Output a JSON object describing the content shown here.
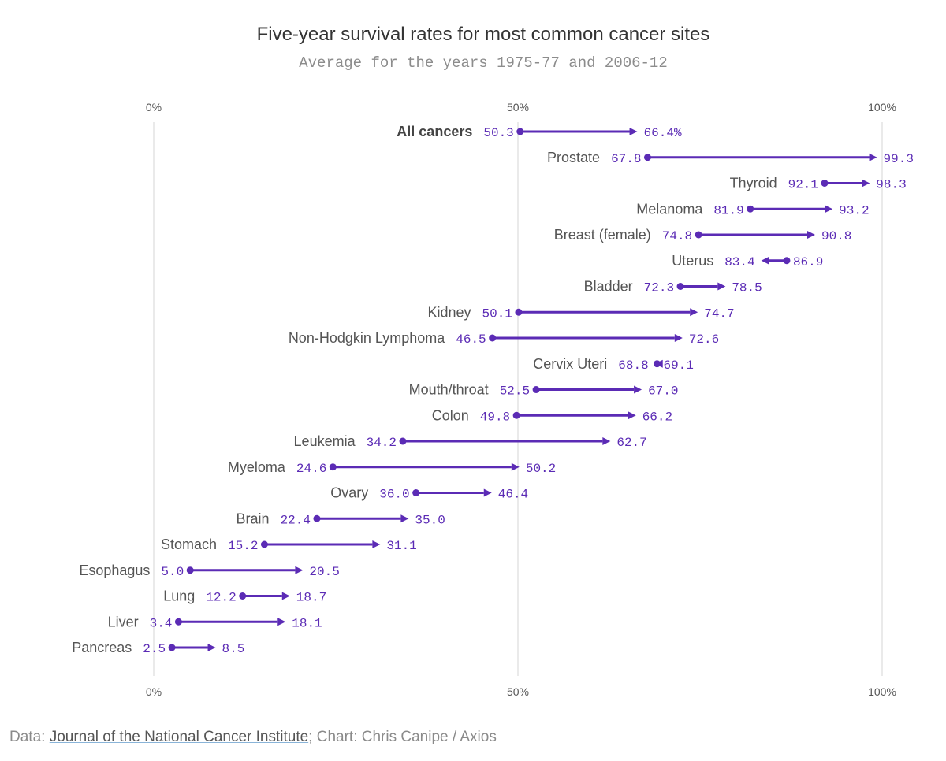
{
  "chart_data": {
    "type": "dumbbell-arrow",
    "title": "Five-year survival rates for most common cancer sites",
    "subtitle": "Average for the years 1975-77 and 2006-12",
    "xlim": [
      0,
      100
    ],
    "ticks": [
      {
        "value": 0,
        "label": "0%"
      },
      {
        "value": 50,
        "label": "50%"
      },
      {
        "value": 100,
        "label": "100%"
      }
    ],
    "color": "#5b2bb5",
    "gridline_color": "#d4d4d4",
    "series_names": [
      "1975-77",
      "2006-12"
    ],
    "rows": [
      {
        "category": "All cancers",
        "start": 50.3,
        "end": 66.4,
        "start_label": "50.3",
        "end_label": "66.4%",
        "bold": true
      },
      {
        "category": "Prostate",
        "start": 67.8,
        "end": 99.3,
        "start_label": "67.8",
        "end_label": "99.3"
      },
      {
        "category": "Thyroid",
        "start": 92.1,
        "end": 98.3,
        "start_label": "92.1",
        "end_label": "98.3"
      },
      {
        "category": "Melanoma",
        "start": 81.9,
        "end": 93.2,
        "start_label": "81.9",
        "end_label": "93.2"
      },
      {
        "category": "Breast (female)",
        "start": 74.8,
        "end": 90.8,
        "start_label": "74.8",
        "end_label": "90.8"
      },
      {
        "category": "Uterus",
        "start": 86.9,
        "end": 83.4,
        "start_label": "86.9",
        "end_label": "83.4"
      },
      {
        "category": "Bladder",
        "start": 72.3,
        "end": 78.5,
        "start_label": "72.3",
        "end_label": "78.5"
      },
      {
        "category": "Kidney",
        "start": 50.1,
        "end": 74.7,
        "start_label": "50.1",
        "end_label": "74.7"
      },
      {
        "category": "Non-Hodgkin Lymphoma",
        "start": 46.5,
        "end": 72.6,
        "start_label": "46.5",
        "end_label": "72.6"
      },
      {
        "category": "Cervix Uteri",
        "start": 69.1,
        "end": 68.8,
        "start_label": "69.1",
        "end_label": "68.8"
      },
      {
        "category": "Mouth/throat",
        "start": 52.5,
        "end": 67.0,
        "start_label": "52.5",
        "end_label": "67.0"
      },
      {
        "category": "Colon",
        "start": 49.8,
        "end": 66.2,
        "start_label": "49.8",
        "end_label": "66.2"
      },
      {
        "category": "Leukemia",
        "start": 34.2,
        "end": 62.7,
        "start_label": "34.2",
        "end_label": "62.7"
      },
      {
        "category": "Myeloma",
        "start": 24.6,
        "end": 50.2,
        "start_label": "24.6",
        "end_label": "50.2"
      },
      {
        "category": "Ovary",
        "start": 36.0,
        "end": 46.4,
        "start_label": "36.0",
        "end_label": "46.4"
      },
      {
        "category": "Brain",
        "start": 22.4,
        "end": 35.0,
        "start_label": "22.4",
        "end_label": "35.0"
      },
      {
        "category": "Stomach",
        "start": 15.2,
        "end": 31.1,
        "start_label": "15.2",
        "end_label": "31.1"
      },
      {
        "category": "Esophagus",
        "start": 5.0,
        "end": 20.5,
        "start_label": "5.0",
        "end_label": "20.5"
      },
      {
        "category": "Lung",
        "start": 12.2,
        "end": 18.7,
        "start_label": "12.2",
        "end_label": "18.7"
      },
      {
        "category": "Liver",
        "start": 3.4,
        "end": 18.1,
        "start_label": "3.4",
        "end_label": "18.1"
      },
      {
        "category": "Pancreas",
        "start": 2.5,
        "end": 8.5,
        "start_label": "2.5",
        "end_label": "8.5"
      }
    ]
  },
  "footer": {
    "prefix": "Data: ",
    "source_link": "Journal of the National Cancer Institute",
    "suffix": "; Chart: Chris Canipe / Axios"
  }
}
